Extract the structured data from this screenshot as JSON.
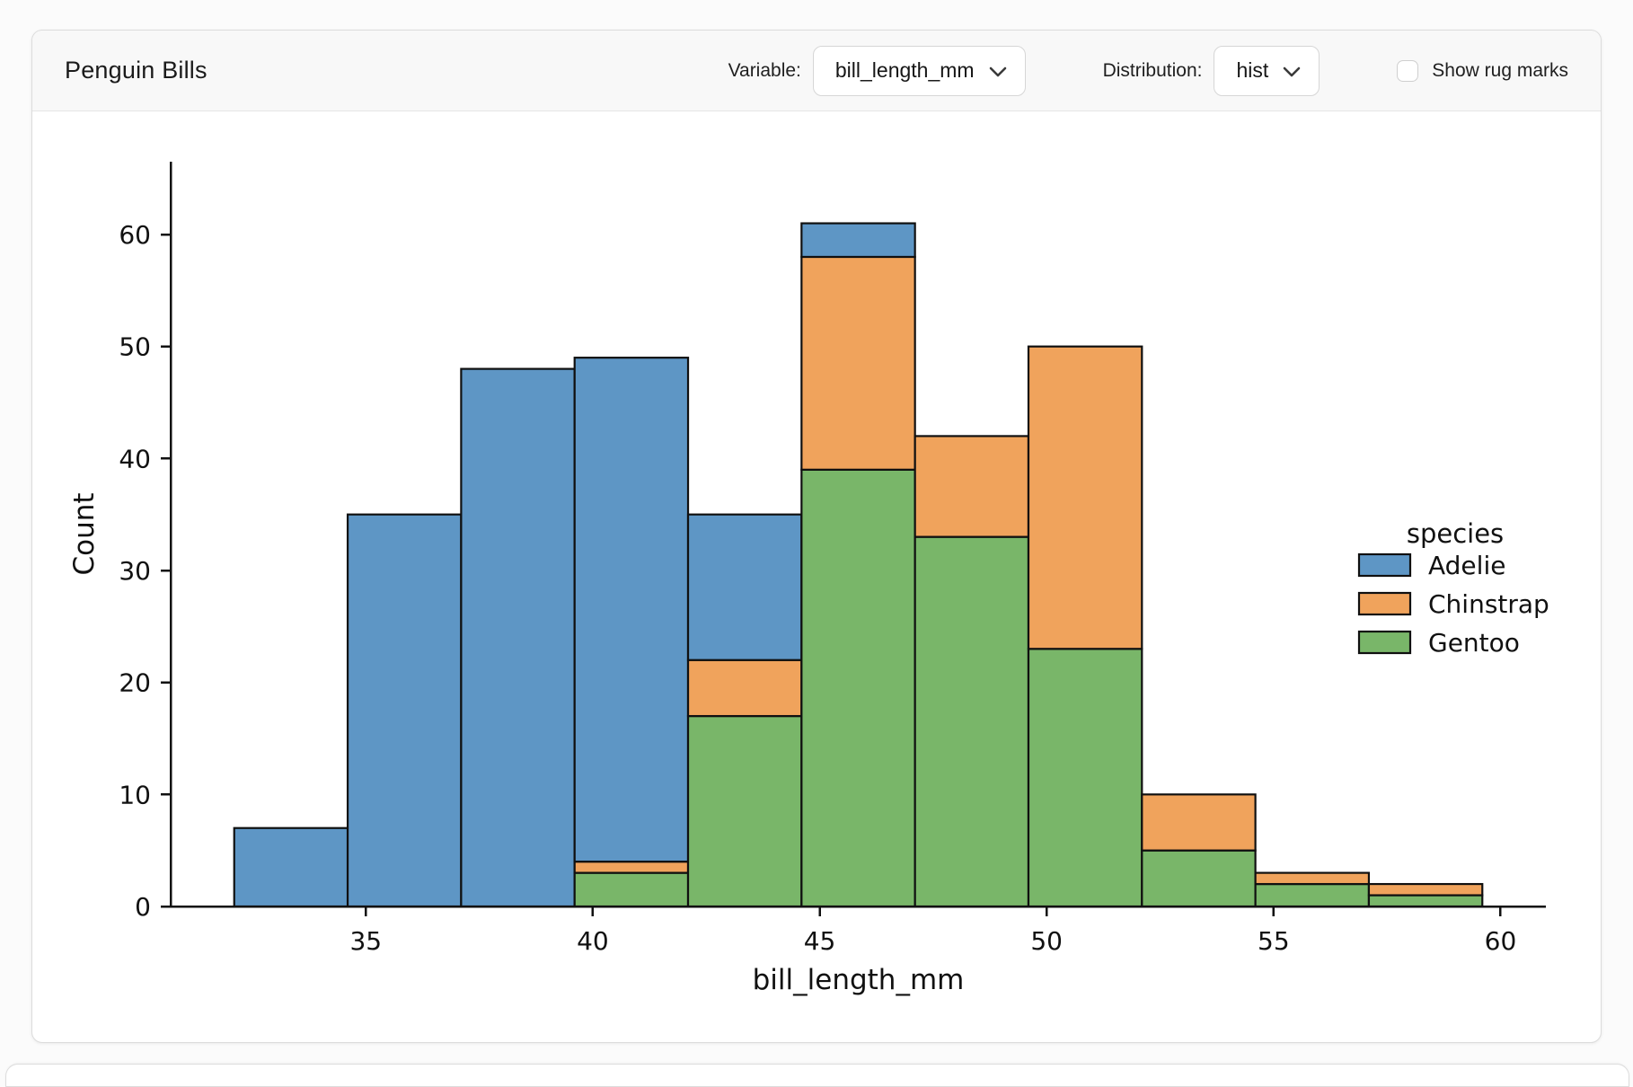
{
  "header": {
    "title": "Penguin Bills",
    "variable_label": "Variable:",
    "variable_value": "bill_length_mm",
    "distribution_label": "Distribution:",
    "distribution_value": "hist",
    "rug_label": "Show rug marks",
    "rug_checked": false,
    "chevron_icon": "chevron-down"
  },
  "chart_data": {
    "type": "bar",
    "subtype": "stacked-histogram",
    "bin_edges": [
      32.1,
      34.6,
      37.1,
      39.6,
      42.1,
      44.6,
      47.1,
      49.6,
      52.1,
      54.6,
      57.1,
      59.6
    ],
    "series": [
      {
        "name": "Adelie",
        "color": "#5E96C5",
        "values": [
          7,
          35,
          48,
          45,
          13,
          3,
          0,
          0,
          0,
          0,
          0
        ]
      },
      {
        "name": "Chinstrap",
        "color": "#F0A35C",
        "values": [
          0,
          0,
          0,
          1,
          5,
          19,
          9,
          27,
          5,
          1,
          1
        ]
      },
      {
        "name": "Gentoo",
        "color": "#79B669",
        "values": [
          0,
          0,
          0,
          3,
          17,
          39,
          33,
          23,
          5,
          2,
          1
        ]
      }
    ],
    "stack_order_bottom_to_top": [
      "Gentoo",
      "Chinstrap",
      "Adelie"
    ],
    "bar_edge_color": "#101010",
    "title": "",
    "xlabel": "bill_length_mm",
    "ylabel": "Count",
    "x_ticks": [
      35,
      40,
      45,
      50,
      55,
      60
    ],
    "y_ticks": [
      0,
      10,
      20,
      30,
      40,
      50,
      60
    ],
    "xlim": [
      30.7,
      61.0
    ],
    "ylim": [
      0,
      66.5
    ],
    "grid": false,
    "legend": {
      "title": "species",
      "entries": [
        "Adelie",
        "Chinstrap",
        "Gentoo"
      ],
      "position": "center-right"
    }
  }
}
